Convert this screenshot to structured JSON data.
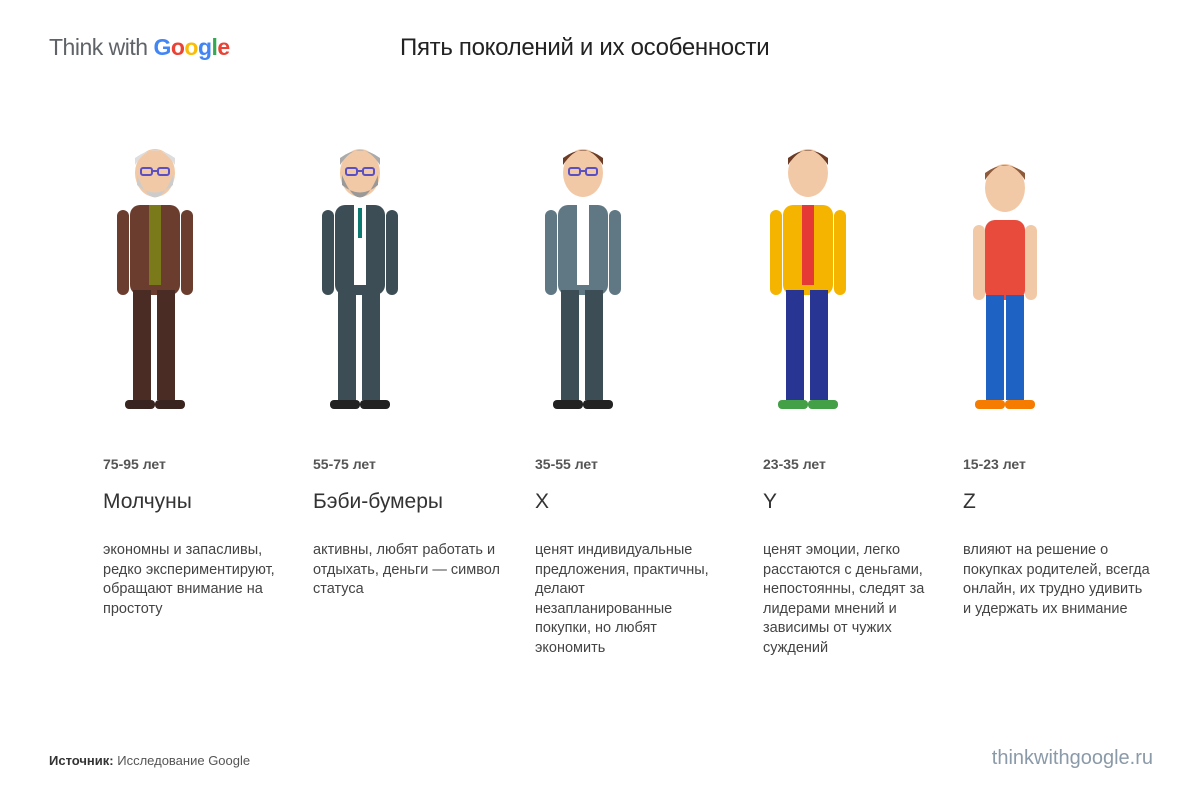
{
  "header": {
    "logo_prefix": "Think with ",
    "logo_brand": "Google",
    "brand_colors": [
      "#4285F4",
      "#EA4335",
      "#FBBC05",
      "#4285F4",
      "#34A853",
      "#EA4335"
    ],
    "title": "Пять поколений и их особенности"
  },
  "generations": [
    {
      "age": "75-95 лет",
      "name": "Молчуны",
      "description": "экономны и запасливы, редко экспериментируют, обращают внимание на простоту"
    },
    {
      "age": "55-75 лет",
      "name": "Бэби-бумеры",
      "description": "активны, любят работать и отдыхать, деньги — символ статуса"
    },
    {
      "age": "35-55 лет",
      "name": "X",
      "description": "ценят индивидуальные предложения, практичны, делают незапланированные покупки, но любят экономить"
    },
    {
      "age": "23-35 лет",
      "name": "Y",
      "description": "ценят эмоции, легко расстаются с деньгами, непостоянны, следят за лидерами мнений и зависимы от чужих суждений"
    },
    {
      "age": "15-23 лет",
      "name": "Z",
      "description": "влияют на решение о покупках родителей, всегда онлайн, их трудно удивить и удержать их внимание"
    }
  ],
  "footer": {
    "source_label": "Источник:",
    "source_text": " Исследование Google",
    "site": "thinkwithgoogle.ru"
  }
}
